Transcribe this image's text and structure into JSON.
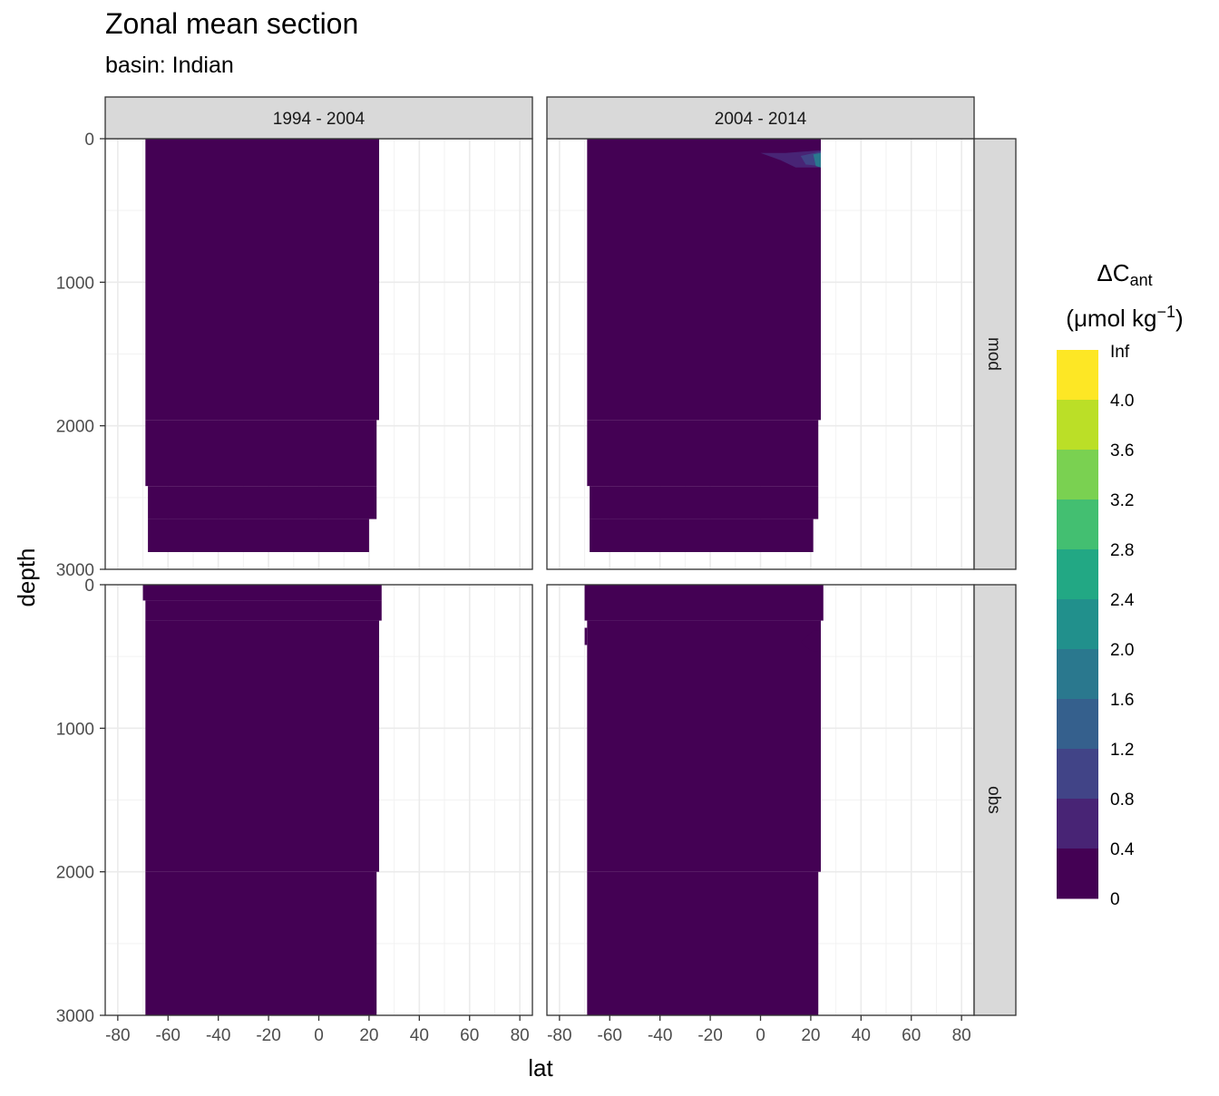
{
  "title": "Zonal mean section",
  "subtitle": "basin: Indian",
  "chart_data": {
    "type": "heatmap",
    "title": "Zonal mean section",
    "subtitle": "basin: Indian",
    "xlabel": "lat",
    "ylabel": "depth",
    "x_ticks": [
      -80,
      -60,
      -40,
      -20,
      0,
      20,
      40,
      60,
      80
    ],
    "y_ticks": [
      0,
      1000,
      2000,
      3000
    ],
    "xlim": [
      -85,
      85
    ],
    "ylim": [
      3000,
      0
    ],
    "grid": true,
    "column_facets": [
      "1994 - 2004",
      "2004 - 2014"
    ],
    "row_facets": [
      "mod",
      "obs"
    ],
    "legend": {
      "title_main": "ΔC",
      "title_sub": "ant",
      "unit_prefix": "(μmol kg",
      "unit_sup": "−1",
      "unit_suffix": ")",
      "placement": "right",
      "labels": [
        "Inf",
        "4.0",
        "3.6",
        "3.2",
        "2.8",
        "2.4",
        "2.0",
        "1.6",
        "1.2",
        "0.8",
        "0.4",
        "0"
      ],
      "colors": [
        "#FDE725",
        "#BBDF27",
        "#7AD151",
        "#43BF71",
        "#22A884",
        "#21908C",
        "#2A788E",
        "#35608D",
        "#414487",
        "#482475",
        "#440154"
      ]
    },
    "panels": [
      {
        "row": "mod",
        "col": "1994 - 2004",
        "segments": [
          {
            "depth": [
              0,
              1960
            ],
            "lat": [
              -69,
              24
            ]
          },
          {
            "depth": [
              1960,
              2420
            ],
            "lat": [
              -69,
              23
            ]
          },
          {
            "depth": [
              2420,
              2650
            ],
            "lat": [
              -68,
              23
            ]
          },
          {
            "depth": [
              2650,
              2880
            ],
            "lat": [
              -68,
              20
            ]
          }
        ],
        "features": []
      },
      {
        "row": "mod",
        "col": "2004 - 2014",
        "segments": [
          {
            "depth": [
              0,
              1960
            ],
            "lat": [
              -69,
              24
            ]
          },
          {
            "depth": [
              1960,
              2420
            ],
            "lat": [
              -69,
              23
            ]
          },
          {
            "depth": [
              2420,
              2650
            ],
            "lat": [
              -68,
              23
            ]
          },
          {
            "depth": [
              2650,
              2880
            ],
            "lat": [
              -68,
              21
            ]
          }
        ],
        "features": [
          {
            "label": "0.8",
            "points": [
              [
                0,
                100
              ],
              [
                10,
                100
              ],
              [
                24,
                80
              ],
              [
                24,
                200
              ],
              [
                14,
                200
              ],
              [
                8,
                150
              ]
            ]
          },
          {
            "label": "1.2",
            "points": [
              [
                16,
                120
              ],
              [
                24,
                90
              ],
              [
                24,
                190
              ],
              [
                18,
                180
              ]
            ]
          },
          {
            "label": "2.0",
            "points": [
              [
                21,
                110
              ],
              [
                24,
                100
              ],
              [
                24,
                200
              ],
              [
                22,
                190
              ]
            ]
          }
        ]
      },
      {
        "row": "obs",
        "col": "1994 - 2004",
        "segments": [
          {
            "depth": [
              0,
              110
            ],
            "lat": [
              -70,
              25
            ]
          },
          {
            "depth": [
              110,
              250
            ],
            "lat": [
              -69,
              25
            ]
          },
          {
            "depth": [
              250,
              2000
            ],
            "lat": [
              -69,
              24
            ]
          },
          {
            "depth": [
              2000,
              3000
            ],
            "lat": [
              -69,
              23
            ]
          }
        ],
        "features": [
          {
            "label": "0.4",
            "points": [
              [
                21,
                480
              ],
              [
                24,
                460
              ],
              [
                24,
                540
              ],
              [
                21,
                520
              ]
            ]
          }
        ]
      },
      {
        "row": "obs",
        "col": "2004 - 2014",
        "segments": [
          {
            "depth": [
              0,
              250
            ],
            "lat": [
              -70,
              25
            ]
          },
          {
            "depth": [
              250,
              2000
            ],
            "lat": [
              -69,
              24
            ]
          },
          {
            "depth": [
              2000,
              3000
            ],
            "lat": [
              -69,
              23
            ]
          }
        ],
        "features": [
          {
            "label": "0.4",
            "points": [
              [
                16,
                400
              ],
              [
                21,
                320
              ],
              [
                24,
                320
              ],
              [
                24,
                470
              ],
              [
                20,
                460
              ]
            ]
          },
          {
            "label": "0.4",
            "points": [
              [
                -70,
                300
              ],
              [
                -69,
                300
              ],
              [
                -69,
                420
              ],
              [
                -70,
                420
              ]
            ]
          }
        ]
      }
    ]
  }
}
